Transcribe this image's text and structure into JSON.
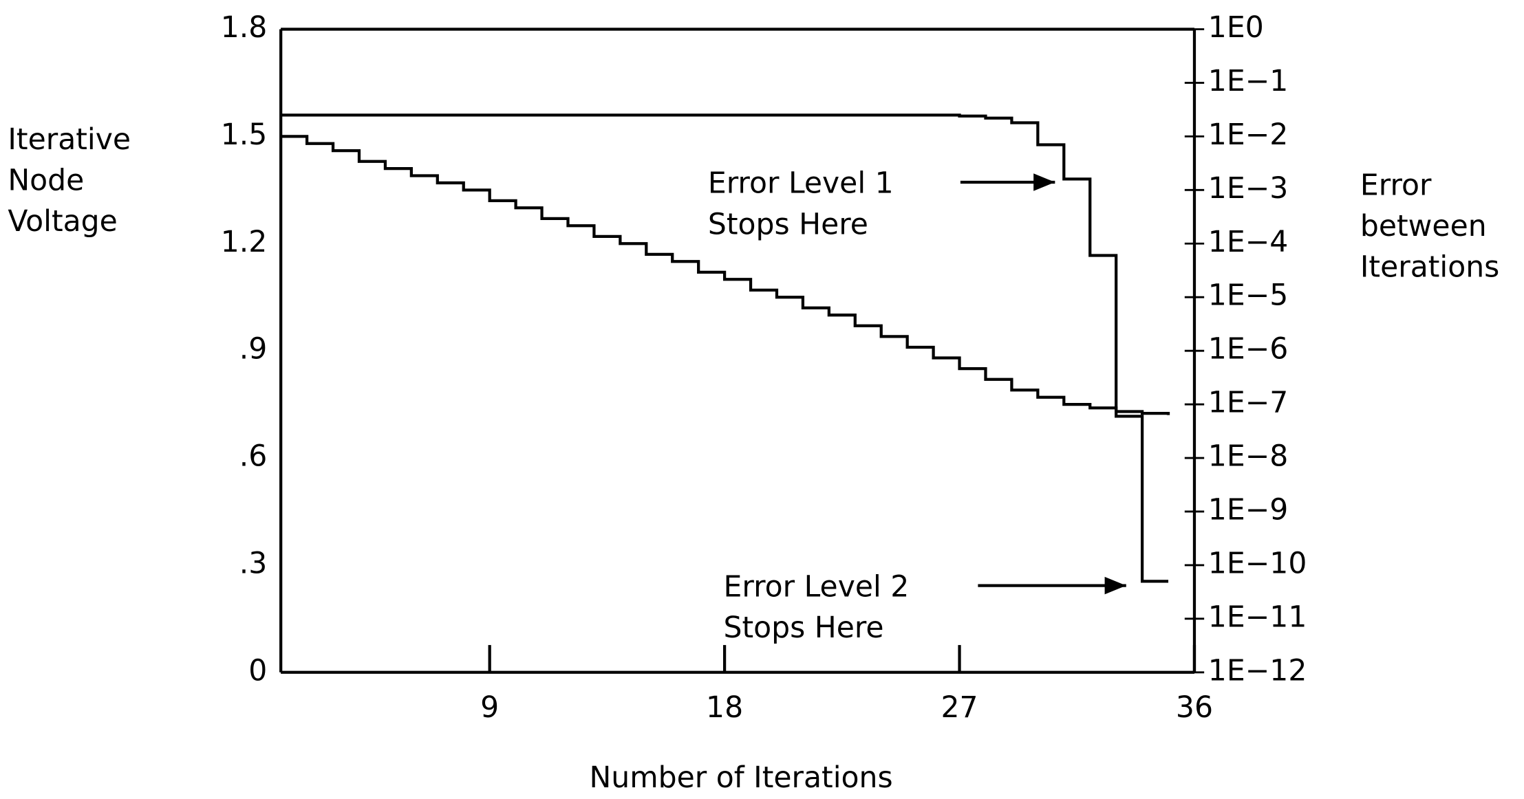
{
  "chart_data": {
    "type": "line",
    "ylabel": [
      "Iterative",
      "Node",
      "Voltage"
    ],
    "y2label": [
      "Error",
      "between",
      "Iterations"
    ],
    "xlabel": "Number of Iterations",
    "x": [
      1,
      2,
      3,
      4,
      5,
      6,
      7,
      8,
      9,
      10,
      11,
      12,
      13,
      14,
      15,
      16,
      17,
      18,
      19,
      20,
      21,
      22,
      23,
      24,
      25,
      26,
      27,
      28,
      29,
      30,
      31,
      32,
      33,
      34,
      35
    ],
    "series": [
      {
        "color": "#000000",
        "step": true,
        "values": [
          1.5,
          1.48,
          1.46,
          1.43,
          1.41,
          1.39,
          1.37,
          1.35,
          1.32,
          1.3,
          1.27,
          1.25,
          1.22,
          1.2,
          1.17,
          1.15,
          1.12,
          1.1,
          1.07,
          1.05,
          1.02,
          1.0,
          0.97,
          0.94,
          0.91,
          0.88,
          0.85,
          0.82,
          0.79,
          0.77,
          0.75,
          0.74,
          0.73,
          0.725,
          0.72
        ]
      },
      {
        "color": "#000000",
        "step": true,
        "axis": "y2",
        "values": [
          0.025,
          0.025,
          0.025,
          0.025,
          0.025,
          0.025,
          0.025,
          0.025,
          0.025,
          0.025,
          0.025,
          0.025,
          0.025,
          0.025,
          0.025,
          0.025,
          0.025,
          0.025,
          0.025,
          0.025,
          0.025,
          0.025,
          0.025,
          0.025,
          0.025,
          0.025,
          0.024,
          0.022,
          0.018,
          0.007,
          0.0016,
          6e-05,
          6e-08,
          5e-11,
          5e-11
        ]
      }
    ],
    "xlim": [
      1,
      36
    ],
    "xticks": [
      9,
      18,
      27,
      36
    ],
    "ylim": [
      0,
      1.8
    ],
    "yticks": [
      0,
      {
        "value": 0.3,
        "label": ".3"
      },
      {
        "value": 0.6,
        "label": ".6"
      },
      {
        "value": 0.9,
        "label": ".9"
      },
      1.2,
      1.5,
      1.8
    ],
    "y2lim": [
      1e-12,
      1
    ],
    "y2log": true,
    "y2ticks": [
      {
        "value": 1,
        "label": "1E0"
      },
      {
        "value": 0.1,
        "label": "1E−1"
      },
      {
        "value": 0.01,
        "label": "1E−2"
      },
      {
        "value": 0.001,
        "label": "1E−3"
      },
      {
        "value": 0.0001,
        "label": "1E−4"
      },
      {
        "value": 1e-05,
        "label": "1E−5"
      },
      {
        "value": 1e-06,
        "label": "1E−6"
      },
      {
        "value": 1e-07,
        "label": "1E−7"
      },
      {
        "value": 1e-08,
        "label": "1E−8"
      },
      {
        "value": 1e-09,
        "label": "1E−9"
      },
      {
        "value": 1e-10,
        "label": "1E−10"
      },
      {
        "value": 1e-11,
        "label": "1E−11"
      },
      {
        "value": 1e-12,
        "label": "1E−12"
      }
    ],
    "annotations": [
      {
        "lines": [
          "Error Level 1",
          "Stops Here"
        ]
      },
      {
        "lines": [
          "Error Level 2",
          "Stops Here"
        ]
      }
    ]
  }
}
